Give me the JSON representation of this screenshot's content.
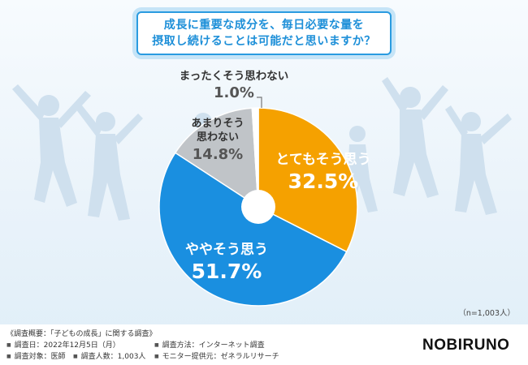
{
  "title": {
    "line1": "成長に重要な成分を、毎日必要な量を",
    "line2": "摂取し続けることは可能だと思いますか？"
  },
  "chart_data": {
    "type": "pie",
    "title": "成長に重要な成分を、毎日必要な量を摂取し続けることは可能だと思いますか？",
    "start": "12 o'clock, clockwise",
    "slices": [
      {
        "label": "とてもそう思う",
        "value": 32.5,
        "display": "32.5%",
        "color": "#f5a100"
      },
      {
        "label": "ややそう思う",
        "value": 51.7,
        "display": "51.7%",
        "color": "#1a8fe0"
      },
      {
        "label": "あまりそう思わない",
        "label_lines": [
          "あまりそう",
          "思わない"
        ],
        "value": 14.8,
        "display": "14.8%",
        "color": "#c0c4c8"
      },
      {
        "label": "まったくそう思わない",
        "value": 1.0,
        "display": "1.0%",
        "color": "#ffffff"
      }
    ]
  },
  "sample_note": "（n=1,003人）",
  "survey": {
    "title": "《調査概要：「子どもの成長」に関する調査》",
    "date": "調査日：2022年12月5日（月）",
    "method": "調査方法：インターネット調査",
    "target": "調査対象：医師",
    "count": "調査人数：1,003人",
    "provider": "モニター提供元：ゼネラルリサーチ"
  },
  "logo": "NOBIRUNO",
  "colors": {
    "accent": "#1d8fd8",
    "orange": "#f5a100",
    "blue": "#1a8fe0",
    "gray": "#c0c4c8"
  }
}
